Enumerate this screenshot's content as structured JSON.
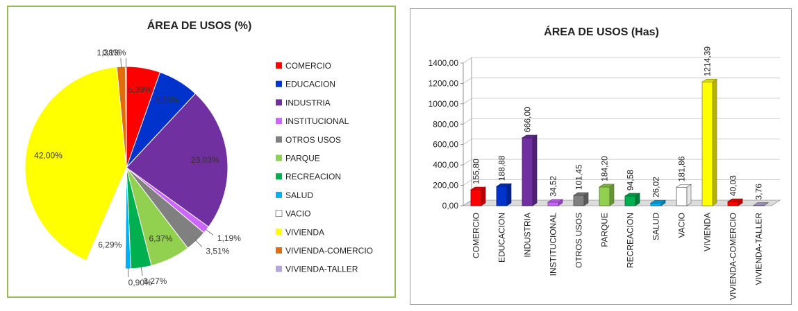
{
  "chart_data": [
    {
      "type": "pie",
      "title": "ÁREA DE USOS (%)",
      "categories": [
        "COMERCIO",
        "EDUCACION",
        "INDUSTRIA",
        "INSTITUCIONAL",
        "OTROS USOS",
        "PARQUE",
        "RECREACION",
        "SALUD",
        "VACIO",
        "VIVIENDA",
        "VIVIENDA-COMERCIO",
        "VIVIENDA-TALLER"
      ],
      "values": [
        5.39,
        6.53,
        23.03,
        1.19,
        3.51,
        6.37,
        3.27,
        0.9,
        6.29,
        42.0,
        1.38,
        0.13
      ],
      "labels": [
        "5,39%",
        "6,53%",
        "23,03%",
        "1,19%",
        "3,51%",
        "6,37%",
        "3,27%",
        "0,90%",
        "6,29%",
        "42,00%",
        "1,38%",
        "0,13%"
      ],
      "colors": [
        "#ff0000",
        "#0033cc",
        "#7030a0",
        "#cc66ff",
        "#808080",
        "#92d050",
        "#00b050",
        "#00b0f0",
        "#ffffff",
        "#ffff00",
        "#e36c0a",
        "#b4a7d6"
      ],
      "legend_position": "right"
    },
    {
      "type": "bar",
      "title": "ÁREA DE USOS (Has)",
      "categories": [
        "COMERCIO",
        "EDUCACION",
        "INDUSTRIA",
        "INSTITUCIONAL",
        "OTROS USOS",
        "PARQUE",
        "RECREACION",
        "SALUD",
        "VACIO",
        "VIVIENDA",
        "VIVIENDA-COMERCIO",
        "VIVIENDA-TALLER"
      ],
      "values": [
        155.8,
        188.88,
        666.0,
        34.52,
        101.45,
        184.2,
        94.58,
        26.02,
        181.86,
        1214.39,
        40.03,
        3.76
      ],
      "value_labels": [
        "155,80",
        "188,88",
        "666,00",
        "34,52",
        "101,45",
        "184,20",
        "94,58",
        "26,02",
        "181,86",
        "1214,39",
        "40,03",
        "3,76"
      ],
      "colors": [
        "#ff0000",
        "#0033cc",
        "#7030a0",
        "#cc66ff",
        "#808080",
        "#92d050",
        "#00b050",
        "#00b0f0",
        "#ffffff",
        "#ffff00",
        "#ff0000",
        "#b4a7d6"
      ],
      "ylim": [
        0,
        1400
      ],
      "yticks": [
        "0,00",
        "200,00",
        "400,00",
        "600,00",
        "800,00",
        "1000,00",
        "1200,00",
        "1400,00"
      ],
      "grid": true
    }
  ]
}
